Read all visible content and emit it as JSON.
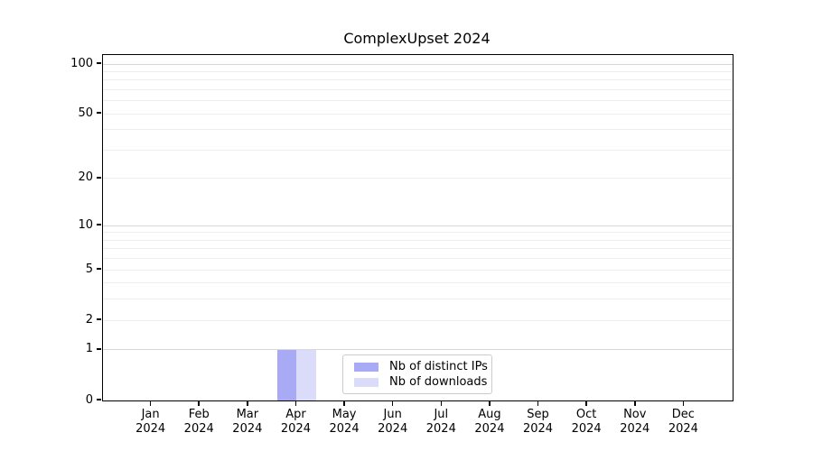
{
  "chart_data": {
    "type": "bar",
    "title": "ComplexUpset 2024",
    "scale": "log1p",
    "ylim": [
      0,
      100
    ],
    "grid": true,
    "legend_position": "lower center",
    "categories": [
      "Jan 2024",
      "Feb 2024",
      "Mar 2024",
      "Apr 2024",
      "May 2024",
      "Jun 2024",
      "Jul 2024",
      "Aug 2024",
      "Sep 2024",
      "Oct 2024",
      "Nov 2024",
      "Dec 2024"
    ],
    "series": [
      {
        "name": "Nb of distinct IPs",
        "color": "#a8aaf6",
        "values": [
          0,
          0,
          0,
          1,
          0,
          0,
          0,
          0,
          0,
          0,
          0,
          0
        ]
      },
      {
        "name": "Nb of downloads",
        "color": "#dbdcfa",
        "values": [
          0,
          0,
          0,
          1,
          0,
          0,
          0,
          0,
          0,
          0,
          0,
          0
        ]
      }
    ],
    "y_ticks": [
      0,
      1,
      2,
      5,
      10,
      20,
      50,
      100
    ],
    "y_major_gridlines": [
      1,
      10,
      100
    ],
    "y_minor_gridlines": [
      2,
      3,
      4,
      5,
      6,
      7,
      8,
      9,
      20,
      30,
      40,
      50,
      60,
      70,
      80,
      90
    ],
    "colors": {
      "axis": "#000000",
      "major_grid": "#d8d8d8",
      "minor_grid": "#ededed",
      "legend_border": "#cccccc"
    }
  }
}
